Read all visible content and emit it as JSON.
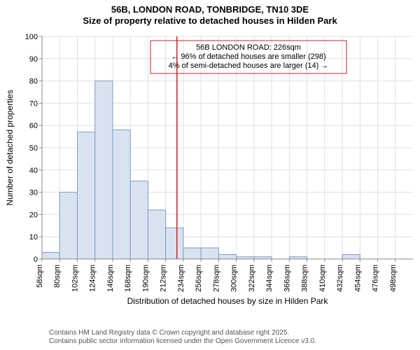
{
  "title_line1": "56B, LONDON ROAD, TONBRIDGE, TN10 3DE",
  "title_line2": "Size of property relative to detached houses in Hilden Park",
  "chart": {
    "type": "histogram",
    "ylabel": "Number of detached properties",
    "xlabel": "Distribution of detached houses by size in Hilden Park",
    "y": {
      "min": 0,
      "max": 100,
      "tick_step": 10
    },
    "x": {
      "ticks": [
        58,
        80,
        102,
        124,
        146,
        168,
        190,
        212,
        234,
        256,
        278,
        300,
        322,
        344,
        366,
        388,
        410,
        432,
        454,
        476,
        498
      ],
      "tick_unit": "sqm"
    },
    "bars": {
      "bin_start": 58,
      "bin_width": 22,
      "counts": [
        3,
        30,
        57,
        80,
        58,
        35,
        22,
        14,
        5,
        5,
        2,
        1,
        1,
        0,
        1,
        0,
        0,
        2,
        0,
        0,
        0
      ],
      "fill": "#d9e3f0",
      "stroke": "#7a9cc6"
    },
    "marker": {
      "x_value": 226,
      "color": "#d02020"
    },
    "annotation": {
      "lines": [
        "56B LONDON ROAD: 226sqm",
        "← 96% of detached houses are smaller (298)",
        "4% of semi-detached houses are larger (14) →"
      ],
      "border_color": "#d02020"
    },
    "grid_color": "#e0e0e0",
    "axis_color": "#888888",
    "background": "#ffffff",
    "label_fontsize": 12,
    "tick_fontsize": 11,
    "anno_fontsize": 11
  },
  "attribution": {
    "line1": "Contains HM Land Registry data © Crown copyright and database right 2025.",
    "line2": "Contains public sector information licensed under the Open Government Licence v3.0."
  }
}
